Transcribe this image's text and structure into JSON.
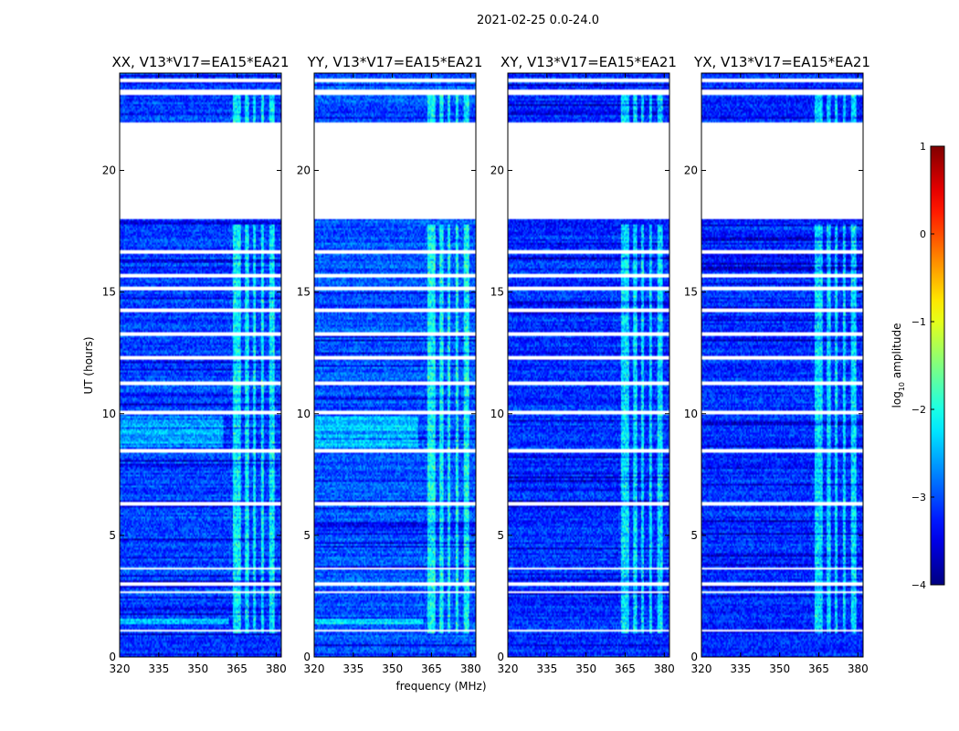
{
  "figure": {
    "suptitle": "2021-02-25 0.0-24.0",
    "ylabel": "UT (hours)",
    "xlabel": "frequency (MHz)"
  },
  "chart_data": {
    "type": "heatmap",
    "title": "2021-02-25 0.0-24.0",
    "xlabel": "frequency (MHz)",
    "ylabel": "UT (hours)",
    "xlim": [
      320,
      382
    ],
    "ylim": [
      0,
      24
    ],
    "xticks": [
      320,
      335,
      350,
      365,
      380
    ],
    "yticks": [
      0,
      5,
      10,
      15,
      20
    ],
    "panels": [
      {
        "title": "XX, V13*V17=EA15*EA21",
        "mean_level": -3.05,
        "variant": "xx"
      },
      {
        "title": "YY, V13*V17=EA15*EA21",
        "mean_level": -2.95,
        "variant": "yy"
      },
      {
        "title": "XY, V13*V17=EA15*EA21",
        "mean_level": -3.15,
        "variant": "cross"
      },
      {
        "title": "YX, V13*V17=EA15*EA21",
        "mean_level": -3.15,
        "variant": "cross"
      }
    ],
    "flagged_time_ranges_hours": [
      [
        18.0,
        22.0
      ],
      [
        23.1,
        23.3
      ],
      [
        23.6,
        23.8
      ],
      [
        16.6,
        16.7
      ],
      [
        15.6,
        15.75
      ],
      [
        15.05,
        15.25
      ],
      [
        14.2,
        14.35
      ],
      [
        13.2,
        13.35
      ],
      [
        12.25,
        12.4
      ],
      [
        11.2,
        11.35
      ],
      [
        10.0,
        10.1
      ],
      [
        8.4,
        8.55
      ],
      [
        6.25,
        6.4
      ],
      [
        3.6,
        3.7
      ],
      [
        2.95,
        3.05
      ],
      [
        2.6,
        2.7
      ],
      [
        1.05,
        1.1
      ]
    ],
    "bright_frequency_bands_mhz": [
      [
        363.5,
        366.5
      ],
      [
        368,
        369.5
      ],
      [
        371,
        372
      ],
      [
        374,
        375.5
      ],
      [
        377.5,
        379.5
      ]
    ],
    "colorbar": {
      "label_main": "log",
      "label_sub": "10",
      "label_rest": " amplitude",
      "range": [
        -4,
        1
      ],
      "ticks": [
        {
          "v": 1,
          "t": "1"
        },
        {
          "v": 0,
          "t": "0"
        },
        {
          "v": -1,
          "t": "−1"
        },
        {
          "v": -2,
          "t": "−2"
        },
        {
          "v": -3,
          "t": "−3"
        },
        {
          "v": -4,
          "t": "−4"
        }
      ],
      "colormap": "jet"
    }
  }
}
